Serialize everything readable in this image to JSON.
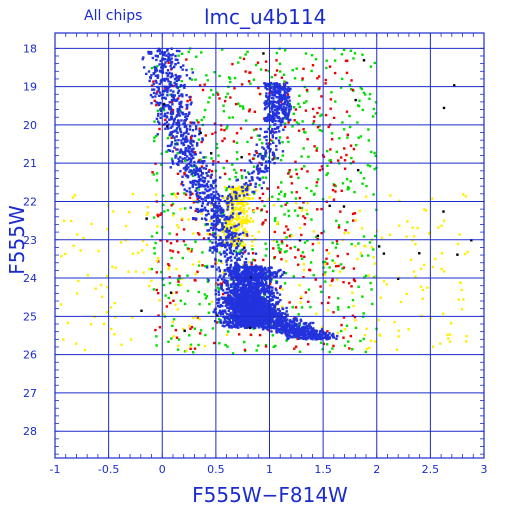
{
  "chart_data": {
    "type": "scatter",
    "title": "lmc_u4b114",
    "subtitle": "All chips",
    "xlabel": "F555W−F814W",
    "ylabel": "F555W",
    "xlim": [
      -1,
      3
    ],
    "ylim": [
      28.7,
      17.6
    ],
    "y_inverted": true,
    "grid": true,
    "x_ticks": [
      -1,
      -0.5,
      0,
      0.5,
      1,
      1.5,
      2,
      2.5,
      3
    ],
    "x_tick_labels": [
      "-1",
      "-0.5",
      "0",
      "0.5",
      "1",
      "1.5",
      "2",
      "2.5",
      "3"
    ],
    "y_ticks": [
      18,
      19,
      20,
      21,
      22,
      23,
      24,
      25,
      26,
      27,
      28
    ],
    "y_tick_labels": [
      "18",
      "19",
      "20",
      "21",
      "22",
      "23",
      "24",
      "25",
      "26",
      "27",
      "28"
    ],
    "series": [
      {
        "color": "#2233dd",
        "components": [
          {
            "kind": "msto",
            "n": 1500,
            "x_center": 0.8,
            "y_range": [
              23.7,
              25.3
            ],
            "x_width": 0.25
          },
          {
            "kind": "ms_upper",
            "n": 900,
            "points": [
              [
                0.0,
                18.0
              ],
              [
                0.1,
                19.5
              ],
              [
                0.25,
                20.8
              ],
              [
                0.45,
                22.0
              ],
              [
                0.6,
                23.0
              ],
              [
                0.7,
                23.8
              ]
            ],
            "x_width": 0.09
          },
          {
            "kind": "subgiant",
            "n": 220,
            "points": [
              [
                0.55,
                22.0
              ],
              [
                0.75,
                21.8
              ],
              [
                0.95,
                21.0
              ],
              [
                1.05,
                20.0
              ],
              [
                1.1,
                19.0
              ]
            ],
            "x_width": 0.06
          },
          {
            "kind": "red_clump",
            "n": 200,
            "x_range": [
              0.95,
              1.2
            ],
            "y_range": [
              18.9,
              19.9
            ]
          },
          {
            "kind": "lower_ms",
            "n": 1000,
            "points": [
              [
                0.75,
                24.5
              ],
              [
                0.95,
                25.0
              ],
              [
                1.2,
                25.3
              ],
              [
                1.45,
                25.6
              ]
            ],
            "x_width": 0.12
          }
        ]
      },
      {
        "color": "#ffee00",
        "components": [
          {
            "kind": "blend_clump",
            "n": 260,
            "x_center": 0.7,
            "y_range": [
              21.6,
              23.2
            ],
            "x_width": 0.14
          },
          {
            "kind": "halo",
            "n": 280,
            "x_range": [
              -0.95,
              2.85
            ],
            "y_range": [
              21.8,
              25.9
            ]
          }
        ]
      },
      {
        "color": "#00dd00",
        "components": [
          {
            "kind": "envelope",
            "n": 550,
            "x_range": [
              -0.1,
              2.0
            ],
            "y_range": [
              18.0,
              26.0
            ]
          }
        ]
      },
      {
        "color": "#ee0000",
        "components": [
          {
            "kind": "envelope",
            "n": 400,
            "x_range": [
              -0.1,
              1.8
            ],
            "y_range": [
              18.2,
              25.9
            ]
          }
        ]
      },
      {
        "color": "#000000",
        "components": [
          {
            "kind": "sparse",
            "n": 30,
            "x_range": [
              -0.2,
              2.9
            ],
            "y_range": [
              18.0,
              26.0
            ]
          }
        ]
      }
    ]
  }
}
